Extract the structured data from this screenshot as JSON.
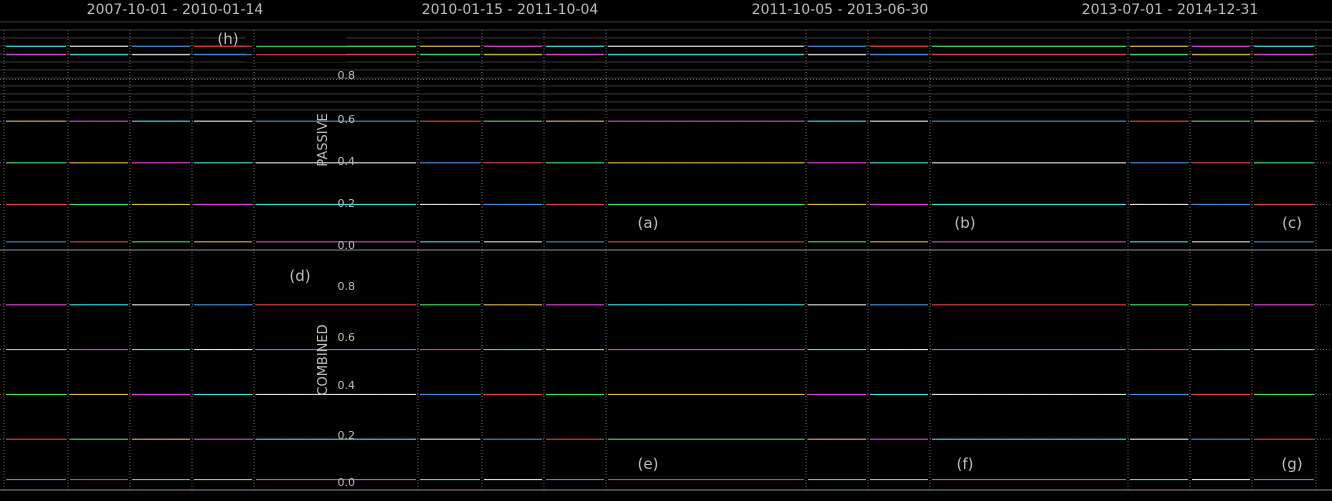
{
  "chart_data": {
    "type": "line",
    "column_titles": [
      "2007-10-01 - 2010-01-14",
      "2010-01-15 - 2011-10-04",
      "2011-10-05 - 2013-06-30",
      "2013-07-01 - 2014-12-31"
    ],
    "row_ylabels": [
      "PASSIVE",
      "COMBINED"
    ],
    "yticks": [
      "0.0",
      "0.2",
      "0.4",
      "0.6",
      "0.8"
    ],
    "ylim": [
      0,
      1
    ],
    "panel_labels": [
      "(a)",
      "(b)",
      "(c)",
      "(d)",
      "(e)",
      "(f)",
      "(g)",
      "(h)"
    ],
    "colors": [
      "#4aa3ff",
      "#ff4a4a",
      "#4aff6a",
      "#ffd24a",
      "#ff4aff",
      "#4affff",
      "#ffffff"
    ],
    "series_levels": {
      "passive": [
        0.02,
        0.2,
        0.4,
        0.6,
        0.92,
        0.96
      ],
      "combined": [
        0.02,
        0.2,
        0.4,
        0.6,
        0.8
      ]
    }
  }
}
